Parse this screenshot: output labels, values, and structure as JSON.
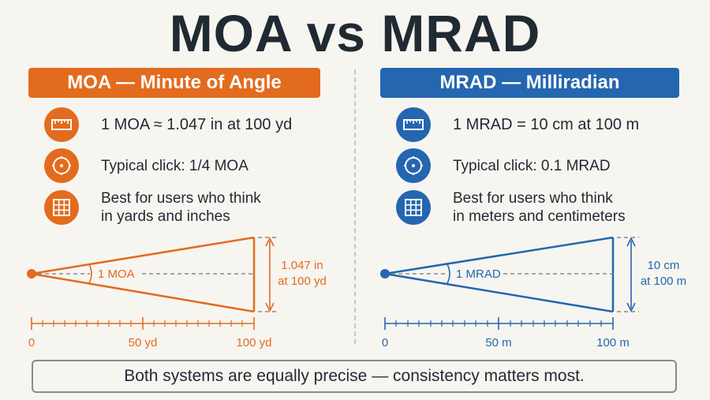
{
  "title": "MOA vs MRAD",
  "moa": {
    "header": "MOA — Minute of Angle",
    "color": "#e36b1e",
    "items": [
      {
        "icon": "ruler-icon",
        "text": "1 MOA ≈ 1.047 in at 100 yd"
      },
      {
        "icon": "turret-dial-icon",
        "text": "Typical click: 1/4 MOA"
      },
      {
        "icon": "grid-icon",
        "line1": "Best for users who think",
        "line2": "in yards and inches"
      }
    ],
    "diagram": {
      "angle_label": "1 MOA",
      "size_line1": "1.047 in",
      "size_line2": "at 100 yd",
      "scale": [
        "0",
        "50 yd",
        "100 yd"
      ]
    }
  },
  "mrad": {
    "header": "MRAD — Milliradian",
    "color": "#2466b0",
    "items": [
      {
        "icon": "ruler-icon",
        "text": "1 MRAD = 10 cm at 100 m"
      },
      {
        "icon": "turret-dial-icon",
        "text": "Typical click: 0.1 MRAD"
      },
      {
        "icon": "grid-icon",
        "line1": "Best for users who think",
        "line2": "in meters and centimeters"
      }
    ],
    "diagram": {
      "angle_label": "1 MRAD",
      "size_line1": "10 cm",
      "size_line2": "at 100 m",
      "scale": [
        "0",
        "50 m",
        "100 m"
      ]
    }
  },
  "footer": "Both systems are equally precise — consistency matters most."
}
